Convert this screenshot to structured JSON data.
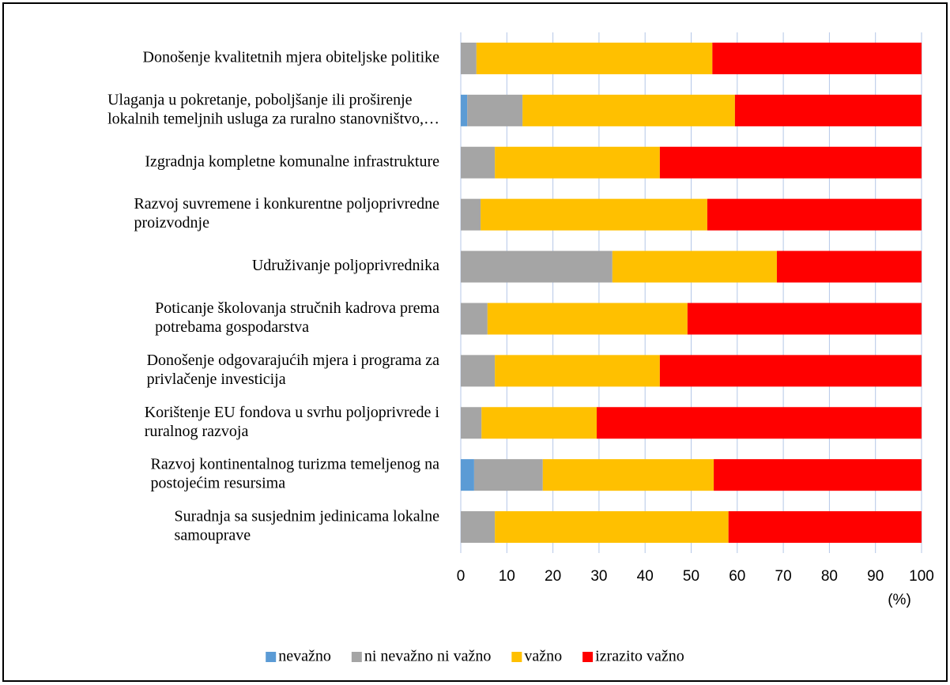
{
  "chart_data": {
    "type": "stacked_bar_horizontal",
    "categories": [
      [
        "Donošenje kvalitetnih mjera obiteljske politike"
      ],
      [
        "Ulaganja u pokretanje, poboljšanje ili proširenje",
        "lokalnih temeljnih usluga za ruralno stanovništvo,…"
      ],
      [
        "Izgradnja kompletne komunalne infrastrukture"
      ],
      [
        "Razvoj suvremene i konkurentne poljoprivredne",
        "proizvodnje"
      ],
      [
        "Udruživanje poljoprivrednika"
      ],
      [
        "Poticanje školovanja stručnih kadrova prema",
        "potrebama gospodarstva"
      ],
      [
        "Donošenje odgovarajućih mjera i programa za",
        "privlačenje investicija"
      ],
      [
        "Korištenje EU fondova u svrhu poljoprivrede i",
        "ruralnog razvoja"
      ],
      [
        "Razvoj kontinentalnog turizma temeljenog na",
        "postojećim resursima"
      ],
      [
        "Suradnja sa susjednim jedinicama lokalne",
        "samouprave"
      ]
    ],
    "series": [
      {
        "name": "nevažno",
        "color": "#5b9bd5",
        "values": [
          0,
          1.4,
          0,
          0,
          0,
          0,
          0,
          0,
          2.9,
          0
        ]
      },
      {
        "name": "ni nevažno ni važno",
        "color": "#a5a5a5",
        "values": [
          3.4,
          12,
          7.4,
          4.3,
          32.9,
          5.8,
          7.4,
          4.5,
          14.9,
          7.4
        ]
      },
      {
        "name": "važno",
        "color": "#ffc000",
        "values": [
          51.2,
          46.1,
          35.8,
          49.2,
          35.7,
          43.4,
          35.8,
          25,
          37.1,
          50.7
        ]
      },
      {
        "name": "izrazito važno",
        "color": "#ff0000",
        "values": [
          45.4,
          40.5,
          56.8,
          46.5,
          31.4,
          50.8,
          56.8,
          70.5,
          45.1,
          41.9
        ]
      }
    ],
    "x_label": "(%)",
    "xlim": [
      0,
      100
    ],
    "xticks": [
      0,
      10,
      20,
      30,
      40,
      50,
      60,
      70,
      80,
      90,
      100
    ],
    "grid": true,
    "legend": "bottom"
  }
}
